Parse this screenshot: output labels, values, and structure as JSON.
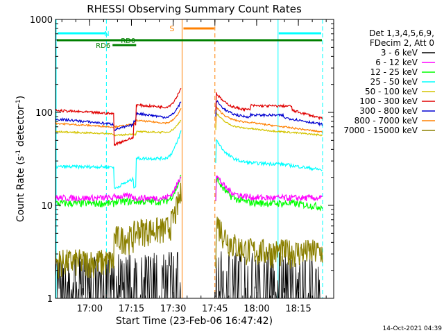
{
  "chart_data": {
    "type": "line",
    "title": "RHESSI Observing Summary Count Rates",
    "xlabel": "Start Time (23-Feb-06 16:47:42)",
    "ylabel_main": "Count Rate (s",
    "ylabel_sup1": "-1",
    "ylabel_mid": " detector",
    "ylabel_sup2": "-1",
    "ylabel_end": ")",
    "y_scale": "log",
    "ylim": [
      1,
      1000
    ],
    "xlim_minutes": [
      0,
      100
    ],
    "x_ticks": [
      {
        "m": 12.3,
        "label": "17:00"
      },
      {
        "m": 27.3,
        "label": "17:15"
      },
      {
        "m": 42.3,
        "label": "17:30"
      },
      {
        "m": 57.3,
        "label": "17:45"
      },
      {
        "m": 72.3,
        "label": "18:00"
      },
      {
        "m": 87.3,
        "label": "18:15"
      }
    ],
    "y_ticks": [
      {
        "v": 1,
        "label": "1"
      },
      {
        "v": 10,
        "label": "10"
      },
      {
        "v": 100,
        "label": "100"
      },
      {
        "v": 1000,
        "label": "1000"
      }
    ],
    "legend_header": [
      "Det 1,3,4,5,6,9,",
      "FDecim 2, Att 0"
    ],
    "legend_position": "right",
    "series": [
      {
        "name": "3 - 6 keV",
        "color": "#000000"
      },
      {
        "name": "6 - 12 keV",
        "color": "#ff00ff"
      },
      {
        "name": "12 - 25 keV",
        "color": "#00ff00"
      },
      {
        "name": "25 - 50 keV",
        "color": "#00ffff"
      },
      {
        "name": "50 - 100 keV",
        "color": "#d4c400"
      },
      {
        "name": "100 - 300 keV",
        "color": "#e00000"
      },
      {
        "name": "300 - 800 keV",
        "color": "#0000d0"
      },
      {
        "name": "800 - 7000 keV",
        "color": "#ff8000"
      },
      {
        "name": "7000 - 15000 keV",
        "color": "#8b8000"
      }
    ],
    "annotations": {
      "night_label": "N",
      "saa_label": "S",
      "rd6_label": "RD6",
      "rd0_label": "RD0",
      "night_intervals": [
        [
          -5,
          18.3
        ],
        [
          80,
          110
        ]
      ],
      "saa_interval": [
        45.5,
        57.3
      ]
    },
    "timestamp": "14-Oct-2021 04:39"
  }
}
